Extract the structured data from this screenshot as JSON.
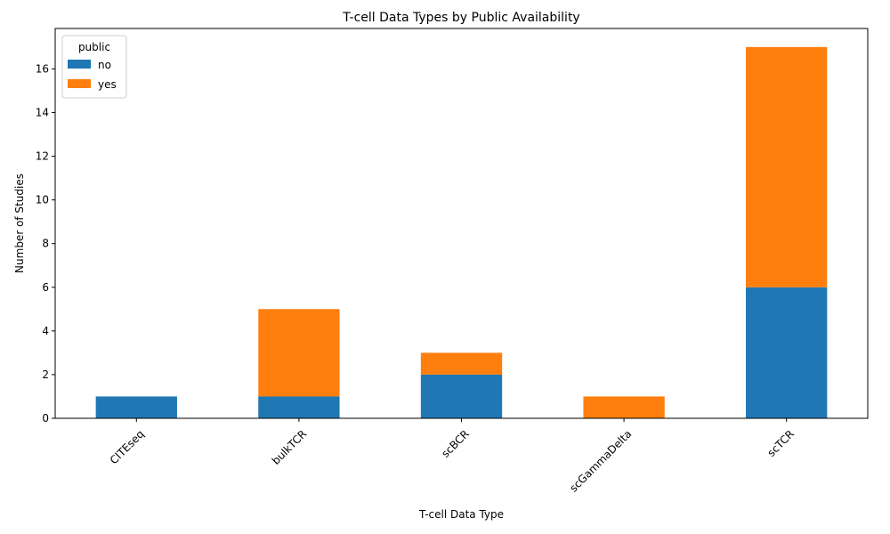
{
  "chart_data": {
    "type": "bar",
    "stacked": true,
    "title": "T-cell Data Types by Public Availability",
    "xlabel": "T-cell Data Type",
    "ylabel": "Number of Studies",
    "categories": [
      "CITEseq",
      "bulkTCR",
      "scBCR",
      "scGammaDelta",
      "scTCR"
    ],
    "series": [
      {
        "name": "no",
        "color": "#1f77b4",
        "values": [
          1,
          1,
          2,
          0,
          6
        ]
      },
      {
        "name": "yes",
        "color": "#ff7f0e",
        "values": [
          0,
          4,
          1,
          1,
          11
        ]
      }
    ],
    "ylim": [
      0,
      17.85
    ],
    "yticks": [
      0,
      2,
      4,
      6,
      8,
      10,
      12,
      14,
      16
    ],
    "xtick_rotation": 45,
    "legend": {
      "title": "public",
      "position": "top-left"
    },
    "grid": false
  }
}
